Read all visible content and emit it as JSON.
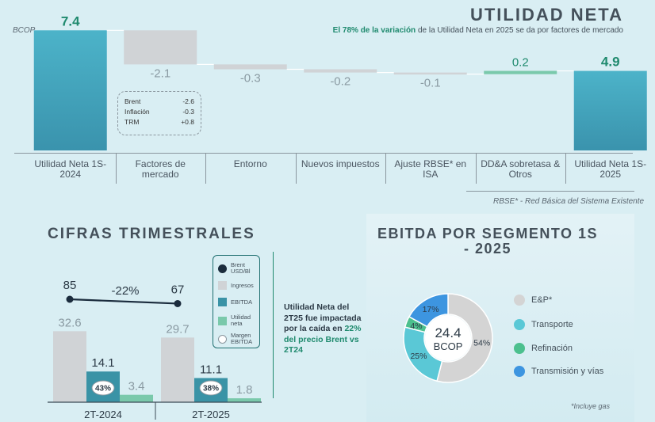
{
  "waterfall": {
    "title": "UTILIDAD NETA",
    "subtitle_bold": "El 78% de la variación",
    "subtitle_rest": " de la Utilidad Neta en 2025 se da por factores de mercado",
    "unit": "BCOP",
    "note": "RBSE* - Red Básica del Sistema Existente",
    "market_box": [
      {
        "label": "Brent",
        "value": "-2.6"
      },
      {
        "label": "Inflación",
        "value": "-0.3"
      },
      {
        "label": "TRM",
        "value": "+0.8"
      }
    ]
  },
  "chart_data": [
    {
      "type": "waterfall",
      "title": "UTILIDAD NETA",
      "unit": "BCOP",
      "categories": [
        "Utilidad Neta 1S-2024",
        "Factores de mercado",
        "Entorno",
        "Nuevos impuestos",
        "Ajuste RBSE* en ISA",
        "DD&A sobretasa & Otros",
        "Utilidad Neta 1S-2025"
      ],
      "values": [
        7.4,
        -2.1,
        -0.3,
        -0.2,
        -0.1,
        0.2,
        4.9
      ],
      "labels": [
        "7.4",
        "-2.1",
        "-0.3",
        "-0.2",
        "-0.1",
        "0.2",
        "4.9"
      ],
      "kinds": [
        "total",
        "delta",
        "delta",
        "delta",
        "delta",
        "delta",
        "total"
      ]
    },
    {
      "type": "bar",
      "title": "CIFRAS TRIMESTRALES",
      "categories": [
        "2T-2024",
        "2T-2025"
      ],
      "series": [
        {
          "name": "Ingresos",
          "values": [
            32.6,
            29.7
          ],
          "labels": [
            "32.6",
            "29.7"
          ]
        },
        {
          "name": "EBITDA",
          "values": [
            14.1,
            11.1
          ],
          "labels": [
            "14.1",
            "11.1"
          ]
        },
        {
          "name": "Utilidad neta",
          "values": [
            3.4,
            1.8
          ],
          "labels": [
            "3.4",
            "1.8"
          ]
        }
      ],
      "brent": {
        "name": "Brent USD/Bl",
        "values": [
          85,
          67
        ],
        "labels": [
          "85",
          "67"
        ],
        "change": "-22%"
      },
      "ebitda_margin": {
        "name": "Margen EBITDA",
        "values": [
          43,
          38
        ],
        "labels": [
          "43%",
          "38%"
        ]
      },
      "legend": [
        "Brent USD/Bl",
        "Ingresos",
        "EBITDA",
        "Utilidad neta",
        "Margen EBITDA"
      ],
      "note_parts": [
        "Utilidad Neta del 2T25 fue impactada por la caída en ",
        "22% del precio Brent vs 2T24"
      ]
    },
    {
      "type": "pie",
      "title": "EBITDA POR SEGMENTO 1S - 2025",
      "center_value": "24.4",
      "center_unit": "BCOP",
      "categories": [
        "E&P*",
        "Transporte",
        "Refinación",
        "Transmisión y vías"
      ],
      "values": [
        54,
        25,
        4,
        17
      ],
      "labels": [
        "54%",
        "25%",
        "4%",
        "17%"
      ],
      "note": "*Incluye gas"
    }
  ],
  "colors": {
    "teal_top": "#4cb3c9",
    "teal_bottom": "#3a93ad",
    "gray_bar": "#d0d3d6",
    "green_bar": "#7ac9ab",
    "ebitda_bar": "#3a93a6",
    "green_text": "#1f8a6e",
    "pie_ep": "#d4d4d4",
    "pie_transporte": "#5ac8d6",
    "pie_refinacion": "#4cc08e",
    "pie_transmision": "#3d95e0"
  }
}
